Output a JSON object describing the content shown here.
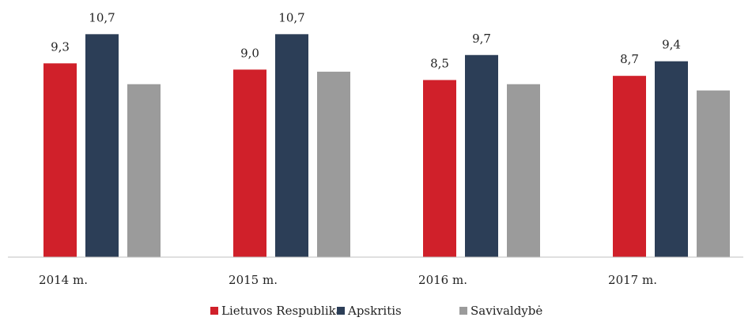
{
  "chart_data": {
    "type": "bar",
    "categories": [
      "2014 m.",
      "2015 m.",
      "2016 m.",
      "2017 m."
    ],
    "series": [
      {
        "name": "Lietuvos Respublika",
        "color": "#d0202a",
        "values": [
          9.3,
          9.0,
          8.5,
          8.7
        ],
        "value_labels": [
          "9,3",
          "9,0",
          "8,5",
          "8,7"
        ]
      },
      {
        "name": "Apskritis",
        "color": "#2c3e57",
        "values": [
          10.7,
          10.7,
          9.7,
          9.4
        ],
        "value_labels": [
          "10,7",
          "10,7",
          "9,7",
          "9,4"
        ]
      },
      {
        "name": "Savivaldybė",
        "color": "#9b9b9b",
        "values": [
          8.3,
          8.9,
          8.3,
          8.0
        ]
      }
    ],
    "ylim": [
      0,
      12
    ],
    "legend": "bottom"
  }
}
